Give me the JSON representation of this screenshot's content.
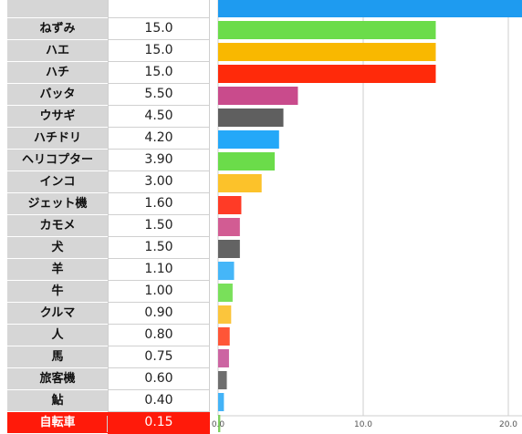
{
  "chart_data": {
    "type": "bar",
    "orientation": "horizontal",
    "categories": [
      "",
      "ねずみ",
      "ハエ",
      "ハチ",
      "バッタ",
      "ウサギ",
      "ハチドリ",
      "ヘリコプター",
      "インコ",
      "ジェット機",
      "カモメ",
      "犬",
      "羊",
      "牛",
      "クルマ",
      "人",
      "馬",
      "旅客機",
      "鮎",
      "自転車"
    ],
    "values": [
      null,
      15.0,
      15.0,
      15.0,
      5.5,
      4.5,
      4.2,
      3.9,
      3.0,
      1.6,
      1.5,
      1.5,
      1.1,
      1.0,
      0.9,
      0.8,
      0.75,
      0.6,
      0.4,
      0.15
    ],
    "value_labels": [
      "",
      "15.0",
      "15.0",
      "15.0",
      "5.50",
      "4.50",
      "4.20",
      "3.90",
      "3.00",
      "1.60",
      "1.50",
      "1.50",
      "1.10",
      "1.00",
      "0.90",
      "0.80",
      "0.75",
      "0.60",
      "0.40",
      "0.15"
    ],
    "top_bar_value": 21,
    "xlim": [
      0,
      21
    ],
    "x_ticks": [
      "0.0",
      "10.0",
      "20.0"
    ],
    "grid": true,
    "highlight_category": "自転車",
    "highlight_color": "#ff1a0a",
    "colors": [
      "#1e9bf0",
      "#6bdc4a",
      "#f9b800",
      "#ff2a0a",
      "#c94b8c",
      "#5f5f5f",
      "#24a8f8",
      "#6bdc4a",
      "#fcc22a",
      "#ff3b26",
      "#d25c93",
      "#636363",
      "#45b6f8",
      "#79e05a",
      "#fbc53c",
      "#ff5537",
      "#cc65a2",
      "#6e6e6e",
      "#43b3f7",
      "#7fd060"
    ]
  }
}
